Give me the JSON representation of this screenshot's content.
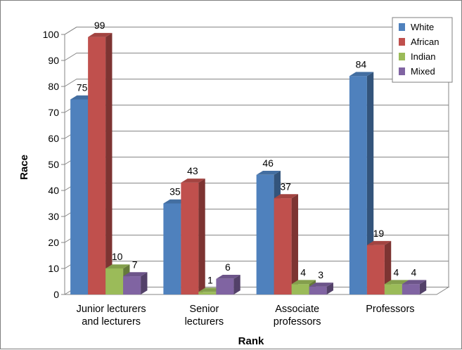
{
  "chart_data": {
    "type": "bar",
    "variant": "3d-clustered-column",
    "categories": [
      [
        "Junior lecturers",
        "and lecturers"
      ],
      [
        "Senior",
        "lecturers"
      ],
      [
        "Associate",
        "professors"
      ],
      [
        "Professors"
      ]
    ],
    "series": [
      {
        "name": "White",
        "values": [
          75,
          35,
          46,
          84
        ],
        "color": "#4f81bd"
      },
      {
        "name": "African",
        "values": [
          99,
          43,
          37,
          19
        ],
        "color": "#c0504d"
      },
      {
        "name": "Indian",
        "values": [
          10,
          1,
          4,
          4
        ],
        "color": "#9bbb59"
      },
      {
        "name": "Mixed",
        "values": [
          7,
          6,
          3,
          4
        ],
        "color": "#8064a2"
      }
    ],
    "title": "",
    "xlabel": "Rank",
    "ylabel": "Race",
    "ylim": [
      0,
      100
    ],
    "yticks": [
      0,
      10,
      20,
      30,
      40,
      50,
      60,
      70,
      80,
      90,
      100
    ],
    "grid": true,
    "legend": "top-right",
    "data_labels": true
  }
}
